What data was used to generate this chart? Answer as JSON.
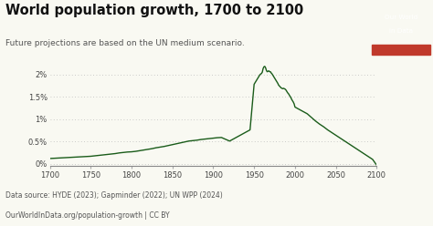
{
  "title": "World population growth, 1700 to 2100",
  "subtitle": "Future projections are based on the UN medium scenario.",
  "source_line1": "Data source: HYDE (2023); Gapminder (2022); UN WPP (2024)",
  "source_line2": "OurWorldInData.org/population-growth | CC BY",
  "logo_bg": "#1a3a5c",
  "logo_bar": "#c0392b",
  "line_color": "#1a5c1a",
  "bg_color": "#f9f9f2",
  "title_color": "#111111",
  "subtitle_color": "#555555",
  "source_color": "#555555",
  "ylabel_ticks": [
    "0%",
    "0.5%",
    "1%",
    "1.5%",
    "2%"
  ],
  "ylabel_values": [
    0,
    0.005,
    0.01,
    0.015,
    0.02
  ],
  "xlim": [
    1700,
    2100
  ],
  "ylim": [
    -0.0005,
    0.0235
  ],
  "xticks": [
    1700,
    1750,
    1800,
    1850,
    1900,
    1950,
    2000,
    2050,
    2100
  ],
  "years": [
    1700,
    1705,
    1710,
    1715,
    1720,
    1725,
    1730,
    1735,
    1740,
    1745,
    1750,
    1755,
    1760,
    1765,
    1770,
    1775,
    1780,
    1785,
    1790,
    1795,
    1800,
    1805,
    1810,
    1815,
    1820,
    1825,
    1830,
    1835,
    1840,
    1845,
    1850,
    1855,
    1860,
    1865,
    1870,
    1875,
    1880,
    1885,
    1890,
    1895,
    1900,
    1905,
    1910,
    1915,
    1920,
    1925,
    1930,
    1935,
    1940,
    1945,
    1950,
    1951,
    1952,
    1953,
    1954,
    1955,
    1956,
    1957,
    1958,
    1959,
    1960,
    1961,
    1962,
    1963,
    1964,
    1965,
    1966,
    1967,
    1968,
    1969,
    1970,
    1971,
    1972,
    1973,
    1974,
    1975,
    1976,
    1977,
    1978,
    1979,
    1980,
    1981,
    1982,
    1983,
    1984,
    1985,
    1986,
    1987,
    1988,
    1989,
    1990,
    1991,
    1992,
    1993,
    1994,
    1995,
    1996,
    1997,
    1998,
    1999,
    2000,
    2005,
    2010,
    2015,
    2020,
    2025,
    2030,
    2035,
    2040,
    2045,
    2050,
    2055,
    2060,
    2065,
    2070,
    2075,
    2080,
    2085,
    2090,
    2095,
    2100
  ],
  "values": [
    0.0012,
    0.00125,
    0.0013,
    0.00135,
    0.0014,
    0.00145,
    0.0015,
    0.00155,
    0.0016,
    0.00165,
    0.0017,
    0.0018,
    0.0019,
    0.002,
    0.0021,
    0.0022,
    0.0023,
    0.00245,
    0.00255,
    0.00265,
    0.0027,
    0.0028,
    0.00295,
    0.0031,
    0.00325,
    0.0034,
    0.0036,
    0.00375,
    0.0039,
    0.0041,
    0.0043,
    0.0045,
    0.0047,
    0.0049,
    0.0051,
    0.0052,
    0.0053,
    0.00545,
    0.00555,
    0.00565,
    0.00575,
    0.00585,
    0.0059,
    0.0055,
    0.0051,
    0.0056,
    0.0061,
    0.0066,
    0.0071,
    0.0076,
    0.0178,
    0.0181,
    0.0184,
    0.0187,
    0.019,
    0.0193,
    0.0196,
    0.0199,
    0.0201,
    0.0202,
    0.0205,
    0.0213,
    0.0217,
    0.0218,
    0.0215,
    0.0209,
    0.0206,
    0.0207,
    0.0208,
    0.0206,
    0.0206,
    0.0203,
    0.0201,
    0.0198,
    0.0195,
    0.0192,
    0.0189,
    0.0186,
    0.0183,
    0.018,
    0.0176,
    0.0174,
    0.0172,
    0.017,
    0.0169,
    0.0168,
    0.0169,
    0.0168,
    0.0167,
    0.0165,
    0.0162,
    0.0159,
    0.0157,
    0.0154,
    0.0151,
    0.0148,
    0.0144,
    0.0141,
    0.0138,
    0.0134,
    0.0127,
    0.0122,
    0.0117,
    0.0112,
    0.0104,
    0.0096,
    0.0089,
    0.0083,
    0.0076,
    0.007,
    0.0064,
    0.0058,
    0.0052,
    0.0046,
    0.004,
    0.0034,
    0.0028,
    0.0022,
    0.0016,
    0.001,
    -0.0003
  ]
}
